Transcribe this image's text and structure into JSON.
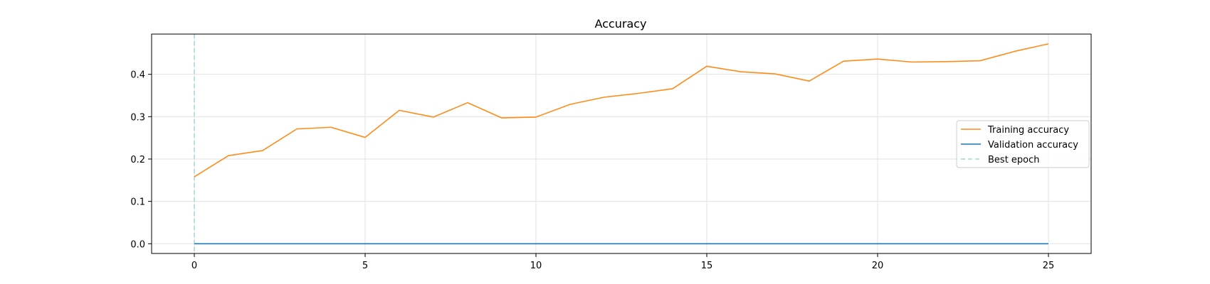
{
  "chart_data": {
    "type": "line",
    "title": "Accuracy",
    "xlabel": "",
    "ylabel": "",
    "xlim": [
      -1.25,
      26.25
    ],
    "ylim": [
      -0.023,
      0.495
    ],
    "xticks": [
      0,
      5,
      10,
      15,
      20,
      25
    ],
    "yticks": [
      0.0,
      0.1,
      0.2,
      0.3,
      0.4
    ],
    "ytick_labels": [
      "0.0",
      "0.1",
      "0.2",
      "0.3",
      "0.4"
    ],
    "grid": true,
    "legend_position": "center-right",
    "x": [
      0,
      1,
      2,
      3,
      4,
      5,
      6,
      7,
      8,
      9,
      10,
      11,
      12,
      13,
      14,
      15,
      16,
      17,
      18,
      19,
      20,
      21,
      22,
      23,
      24,
      25
    ],
    "series": [
      {
        "name": "Training accuracy",
        "color": "#ff8c1a",
        "values": [
          0.158,
          0.208,
          0.22,
          0.271,
          0.275,
          0.251,
          0.315,
          0.299,
          0.333,
          0.297,
          0.299,
          0.329,
          0.346,
          0.355,
          0.366,
          0.419,
          0.406,
          0.401,
          0.384,
          0.431,
          0.436,
          0.429,
          0.43,
          0.432,
          0.454,
          0.472
        ]
      },
      {
        "name": "Validation accuracy",
        "color": "#1f77b4",
        "values": [
          0,
          0,
          0,
          0,
          0,
          0,
          0,
          0,
          0,
          0,
          0,
          0,
          0,
          0,
          0,
          0,
          0,
          0,
          0,
          0,
          0,
          0,
          0,
          0,
          0,
          0
        ]
      }
    ],
    "best_epoch": {
      "name": "Best epoch",
      "x": 0,
      "color": "#a6d4d8"
    }
  }
}
